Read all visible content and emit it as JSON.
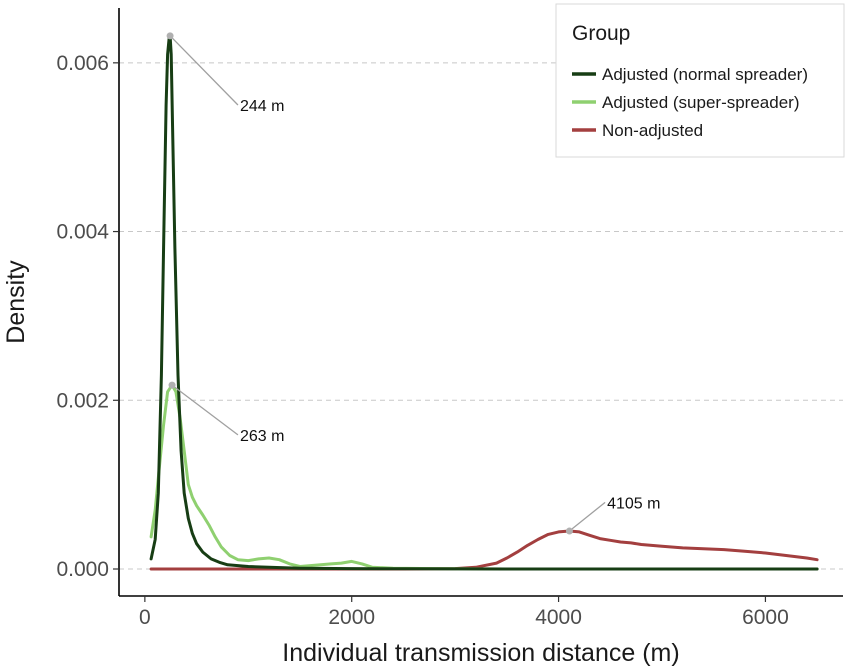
{
  "chart_data": {
    "type": "line",
    "title": "",
    "xlabel": "Individual transmission distance (m)",
    "ylabel": "Density",
    "xlim": [
      -250,
      6750
    ],
    "ylim": [
      -0.00032,
      0.00665
    ],
    "x_ticks": [
      0,
      2000,
      4000,
      6000
    ],
    "x_tick_labels": [
      "0",
      "2000",
      "4000",
      "6000"
    ],
    "y_ticks": [
      0.0,
      0.002,
      0.004,
      0.006
    ],
    "y_tick_labels": [
      "0.000",
      "0.002",
      "0.004",
      "0.006"
    ],
    "grid": "horizontal dashed at y ticks",
    "legend": {
      "title": "Group",
      "position": "top-right",
      "entries": [
        {
          "label": "Adjusted (normal spreader)",
          "color": "#173d14"
        },
        {
          "label": "Adjusted (super-spreader)",
          "color": "#8fd070"
        },
        {
          "label": "Non-adjusted",
          "color": "#a33f3f"
        }
      ]
    },
    "series": [
      {
        "name": "Adjusted (normal spreader)",
        "color": "#173d14",
        "x": [
          60,
          100,
          130,
          160,
          185,
          205,
          220,
          235,
          244,
          255,
          270,
          290,
          320,
          350,
          380,
          420,
          460,
          500,
          560,
          640,
          720,
          800,
          900,
          1000,
          1200,
          1500,
          2000,
          2500,
          3000,
          3500,
          4000,
          5000,
          6000,
          6500
        ],
        "y": [
          0.00012,
          0.00035,
          0.0009,
          0.0023,
          0.0041,
          0.0055,
          0.0061,
          0.0063,
          0.00632,
          0.0061,
          0.0051,
          0.0038,
          0.0023,
          0.0014,
          0.0009,
          0.0006,
          0.00042,
          0.0003,
          0.0002,
          0.00012,
          8e-05,
          5e-05,
          4e-05,
          3e-05,
          2e-05,
          1e-05,
          5e-06,
          2e-06,
          1e-06,
          0.0,
          0.0,
          0.0,
          0.0,
          0.0
        ]
      },
      {
        "name": "Adjusted (super-spreader)",
        "color": "#8fd070",
        "x": [
          60,
          100,
          140,
          180,
          220,
          263,
          300,
          340,
          380,
          420,
          460,
          500,
          560,
          620,
          680,
          740,
          820,
          900,
          1000,
          1100,
          1200,
          1300,
          1400,
          1500,
          1600,
          1700,
          1800,
          1900,
          2000,
          2100,
          2200,
          2400,
          2800,
          3500,
          4500,
          5500,
          6500
        ],
        "y": [
          0.00038,
          0.0007,
          0.0012,
          0.0017,
          0.0021,
          0.00218,
          0.0021,
          0.0018,
          0.0014,
          0.001,
          0.00085,
          0.00075,
          0.00064,
          0.00052,
          0.00038,
          0.00026,
          0.00016,
          0.00011,
          0.0001,
          0.00012,
          0.00013,
          0.00011,
          6e-05,
          3e-05,
          4e-05,
          5e-05,
          6e-05,
          7e-05,
          9e-05,
          6e-05,
          2e-05,
          1e-05,
          5e-06,
          0.0,
          0.0,
          0.0,
          0.0
        ]
      },
      {
        "name": "Non-adjusted",
        "color": "#a33f3f",
        "x": [
          60,
          1000,
          2000,
          2500,
          3000,
          3200,
          3400,
          3500,
          3600,
          3700,
          3800,
          3900,
          4000,
          4105,
          4200,
          4300,
          4400,
          4500,
          4600,
          4700,
          4800,
          5000,
          5200,
          5400,
          5600,
          5800,
          6000,
          6200,
          6400,
          6500
        ],
        "y": [
          0.0,
          0.0,
          0.0,
          0.0,
          5e-06,
          2e-05,
          7e-05,
          0.00013,
          0.0002,
          0.00028,
          0.00035,
          0.00041,
          0.00044,
          0.00045,
          0.00044,
          0.0004,
          0.00036,
          0.00034,
          0.00032,
          0.00031,
          0.00029,
          0.00027,
          0.00025,
          0.00024,
          0.00023,
          0.00021,
          0.00019,
          0.00016,
          0.00013,
          0.00011
        ]
      }
    ],
    "annotations": [
      {
        "label": "244 m",
        "x": 244,
        "y": 0.00632,
        "text_x": 900,
        "text_y": 0.0055
      },
      {
        "label": "263 m",
        "x": 263,
        "y": 0.00218,
        "text_x": 900,
        "text_y": 0.00159
      },
      {
        "label": "4105 m",
        "x": 4105,
        "y": 0.00045,
        "text_x": 4450,
        "text_y": 0.00079
      }
    ]
  }
}
